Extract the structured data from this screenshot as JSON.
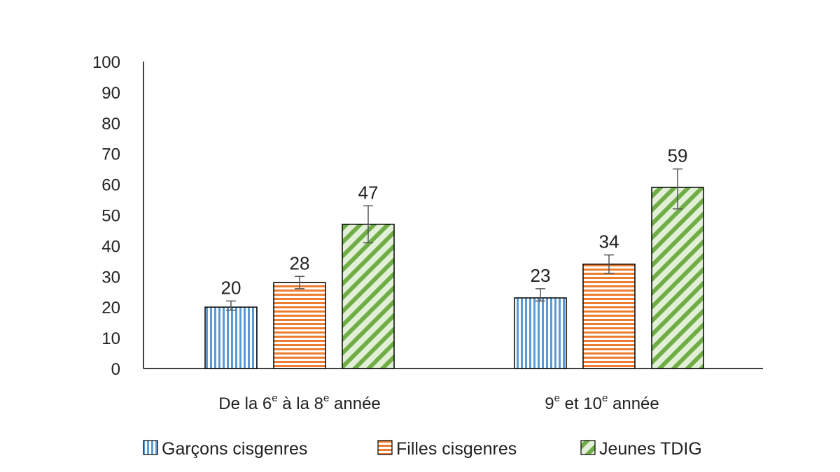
{
  "chart_data": {
    "type": "bar",
    "categories": [
      {
        "parts": [
          "De la 6",
          "e",
          " à la 8",
          "e",
          " année"
        ]
      },
      {
        "parts": [
          "9",
          "e",
          " et 10",
          "e",
          " année"
        ]
      }
    ],
    "series": [
      {
        "name": "Garçons cisgenres",
        "values": [
          20,
          23
        ],
        "error": [
          [
            19,
            22
          ],
          [
            22,
            26
          ]
        ],
        "color": "#5b9bd5",
        "pattern": "vertical-stripes"
      },
      {
        "name": "Filles cisgenres",
        "values": [
          28,
          34
        ],
        "error": [
          [
            26,
            30
          ],
          [
            31,
            37
          ]
        ],
        "color": "#ed7d31",
        "pattern": "horizontal-stripes"
      },
      {
        "name": "Jeunes TDIG",
        "values": [
          47,
          59
        ],
        "error": [
          [
            41,
            53
          ],
          [
            52,
            65
          ]
        ],
        "color": "#70ad47",
        "pattern": "diagonal-stripes"
      }
    ],
    "ylim": [
      0,
      100
    ],
    "yticks": [
      "0",
      "10",
      "20",
      "30",
      "40",
      "50",
      "60",
      "70",
      "80",
      "90",
      "100"
    ],
    "grid": false,
    "legend_position": "bottom",
    "data_labels": true
  }
}
